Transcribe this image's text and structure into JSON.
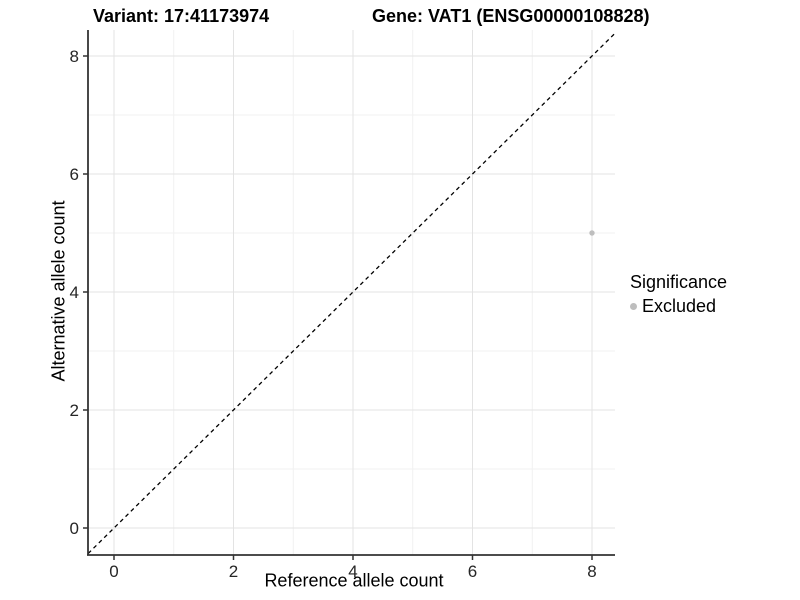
{
  "chart_data": {
    "type": "scatter",
    "titles": {
      "variant": "Variant: 17:41173974",
      "gene": "Gene: VAT1 (ENSG00000108828)"
    },
    "xlabel": "Reference allele count",
    "ylabel": "Alternative allele count",
    "xlim": [
      0,
      8
    ],
    "ylim": [
      0,
      8
    ],
    "x_ticks": [
      0,
      2,
      4,
      6,
      8
    ],
    "y_ticks": [
      0,
      2,
      4,
      6,
      8
    ],
    "x_minor_ticks": [
      1,
      3,
      5,
      7
    ],
    "y_minor_ticks": [
      1,
      3,
      5,
      7
    ],
    "grid": true,
    "points": [
      {
        "x": 8,
        "y": 5,
        "series": "Excluded"
      }
    ],
    "reference_line": {
      "type": "identity",
      "style": "dashed",
      "color": "#000000"
    },
    "legend": {
      "title": "Significance",
      "position": "right",
      "items": [
        {
          "label": "Excluded",
          "color": "#bebebe"
        }
      ]
    },
    "colors": {
      "point": "#bebebe",
      "grid_major": "#e3e3e3",
      "grid_minor": "#f1f1f1",
      "axis_line": "#333333",
      "tick_text": "#262626",
      "title_text": "#000000"
    }
  }
}
